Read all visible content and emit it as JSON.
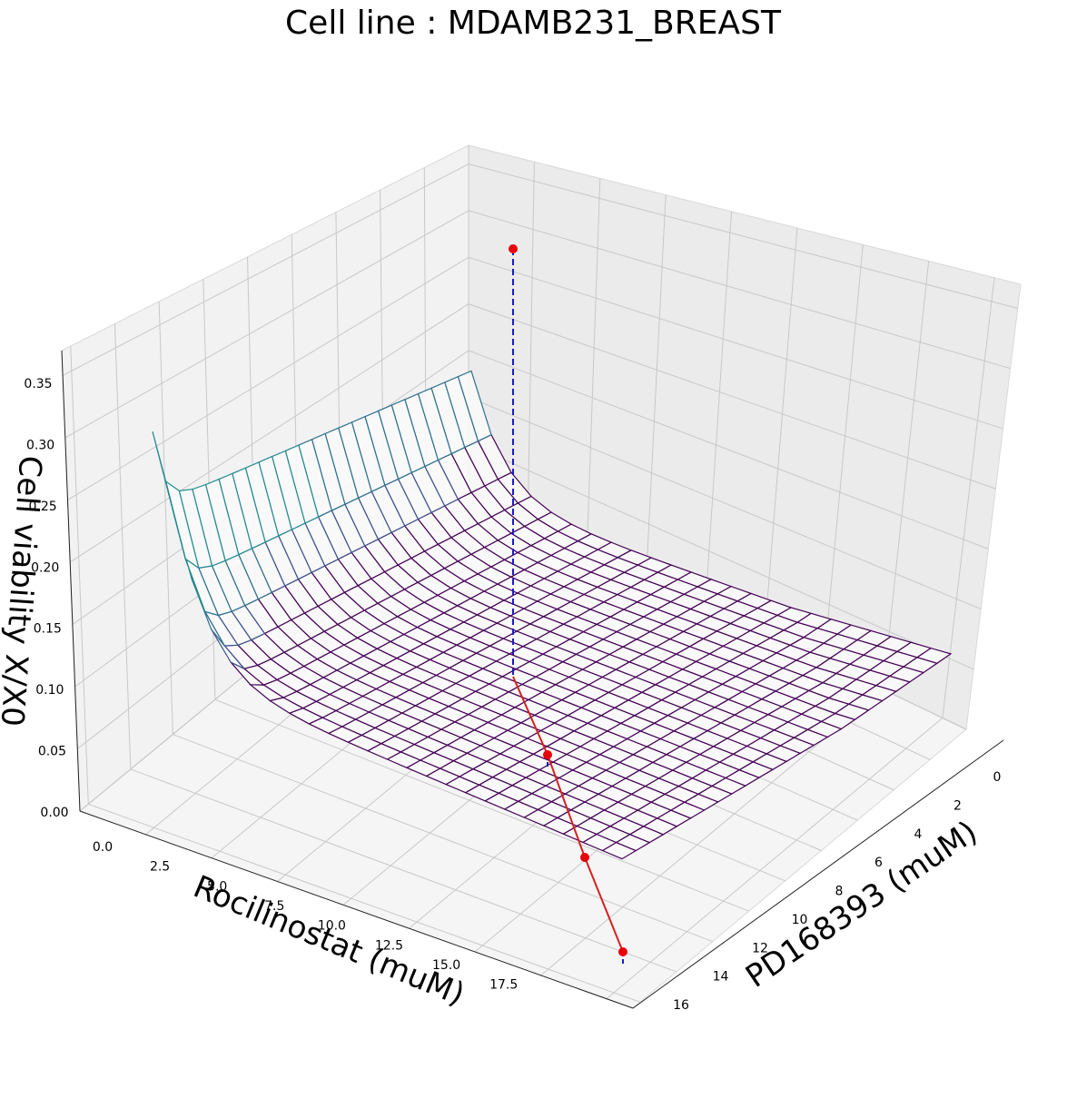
{
  "chart_data": {
    "type": "surface3d",
    "title": "Cell line : MDAMB231_BREAST",
    "xlabel": "Rocilinostat (muM)",
    "ylabel": "PD168393 (muM)",
    "zlabel": "Cell viability X/X0",
    "xticks": [
      "0.0",
      "2.5",
      "5.0",
      "7.5",
      "10.0",
      "12.5",
      "15.0",
      "17.5"
    ],
    "yticks": [
      "0",
      "2",
      "4",
      "6",
      "8",
      "10",
      "12",
      "14",
      "16"
    ],
    "zticks": [
      "0.00",
      "0.05",
      "0.10",
      "0.15",
      "0.20",
      "0.25",
      "0.30",
      "0.35"
    ],
    "xlim": [
      0,
      18
    ],
    "ylim": [
      0,
      16
    ],
    "zlim": [
      0,
      0.37
    ],
    "grid": true,
    "surface": {
      "description_values": "Drug-response surface: viability ~0.36 at (0,0) peak, ~0.27 along x=0 edge near y=0.5, ~0.20 at (0,16), dropping to ~0.06 interior and ~0.03 at high doses",
      "peak": {
        "x": 0,
        "y": 0,
        "z": 0.36
      },
      "x0_edge_start": 0.27,
      "x0_edge_end": 0.2,
      "floor_near": 0.09,
      "floor_far": 0.03
    },
    "experimental_points": [
      {
        "x": 0,
        "y": 0,
        "z": 0.32
      },
      {
        "x": 5.3,
        "y": 12.7,
        "z": 0.0
      },
      {
        "x": 11.2,
        "y": 14.7,
        "z": 0.0
      },
      {
        "x": 17.5,
        "y": 16.0,
        "z": 0.0
      }
    ]
  }
}
